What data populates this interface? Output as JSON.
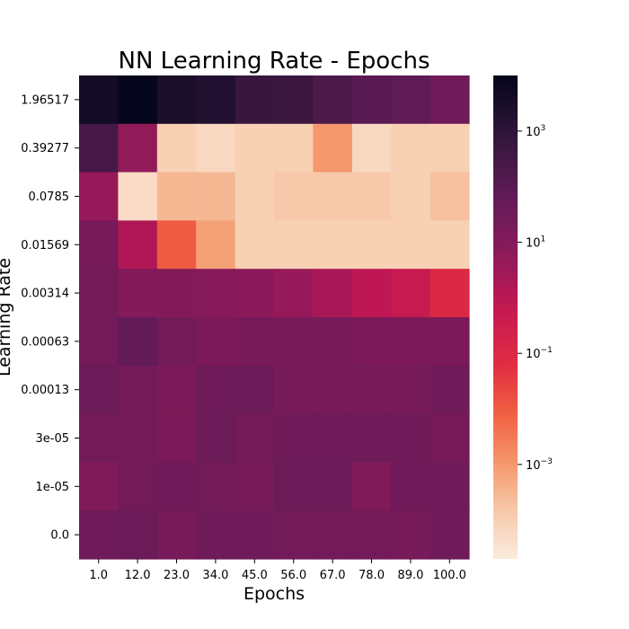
{
  "chart_data": {
    "type": "heatmap",
    "title": "NN Learning Rate - Epochs",
    "xlabel": "Epochs",
    "ylabel": "Learning Rate",
    "x_categories": [
      "1.0",
      "12.0",
      "23.0",
      "34.0",
      "45.0",
      "56.0",
      "67.0",
      "78.0",
      "89.0",
      "100.0"
    ],
    "y_categories": [
      "1.96517",
      "0.39277",
      "0.0785",
      "0.01569",
      "0.00314",
      "0.00063",
      "0.00013",
      "3e-05",
      "1e-05",
      "0.0"
    ],
    "color_scale": "log",
    "colormap": "rocket_r",
    "colorbar_range": [
      2e-05,
      10000
    ],
    "colorbar_ticks": [
      {
        "value": 0.001,
        "label": "10^-3"
      },
      {
        "value": 0.1,
        "label": "10^-1"
      },
      {
        "value": 10,
        "label": "10^1"
      },
      {
        "value": 1000,
        "label": "10^3"
      }
    ],
    "values": [
      [
        4000,
        9000,
        3000,
        2000,
        600,
        500,
        200,
        100,
        80,
        30
      ],
      [
        300,
        5,
        0.0001,
        6e-05,
        0.0001,
        0.0001,
        0.001,
        6e-05,
        0.0001,
        0.0001
      ],
      [
        4,
        5e-05,
        0.0003,
        0.0003,
        0.0001,
        0.00015,
        0.00015,
        0.00015,
        0.0001,
        0.0002
      ],
      [
        20,
        1.5,
        0.01,
        0.0007,
        0.0001,
        0.0001,
        0.0001,
        0.0001,
        0.0001,
        0.0001
      ],
      [
        25,
        10,
        10,
        8,
        6,
        4,
        2,
        0.8,
        0.5,
        0.1
      ],
      [
        25,
        60,
        25,
        15,
        18,
        18,
        18,
        15,
        15,
        15
      ],
      [
        40,
        25,
        15,
        30,
        40,
        20,
        20,
        20,
        20,
        30
      ],
      [
        25,
        25,
        15,
        40,
        25,
        30,
        30,
        30,
        30,
        20
      ],
      [
        12,
        25,
        30,
        25,
        20,
        40,
        40,
        12,
        30,
        30
      ],
      [
        30,
        40,
        20,
        30,
        30,
        25,
        25,
        25,
        20,
        30
      ]
    ]
  }
}
